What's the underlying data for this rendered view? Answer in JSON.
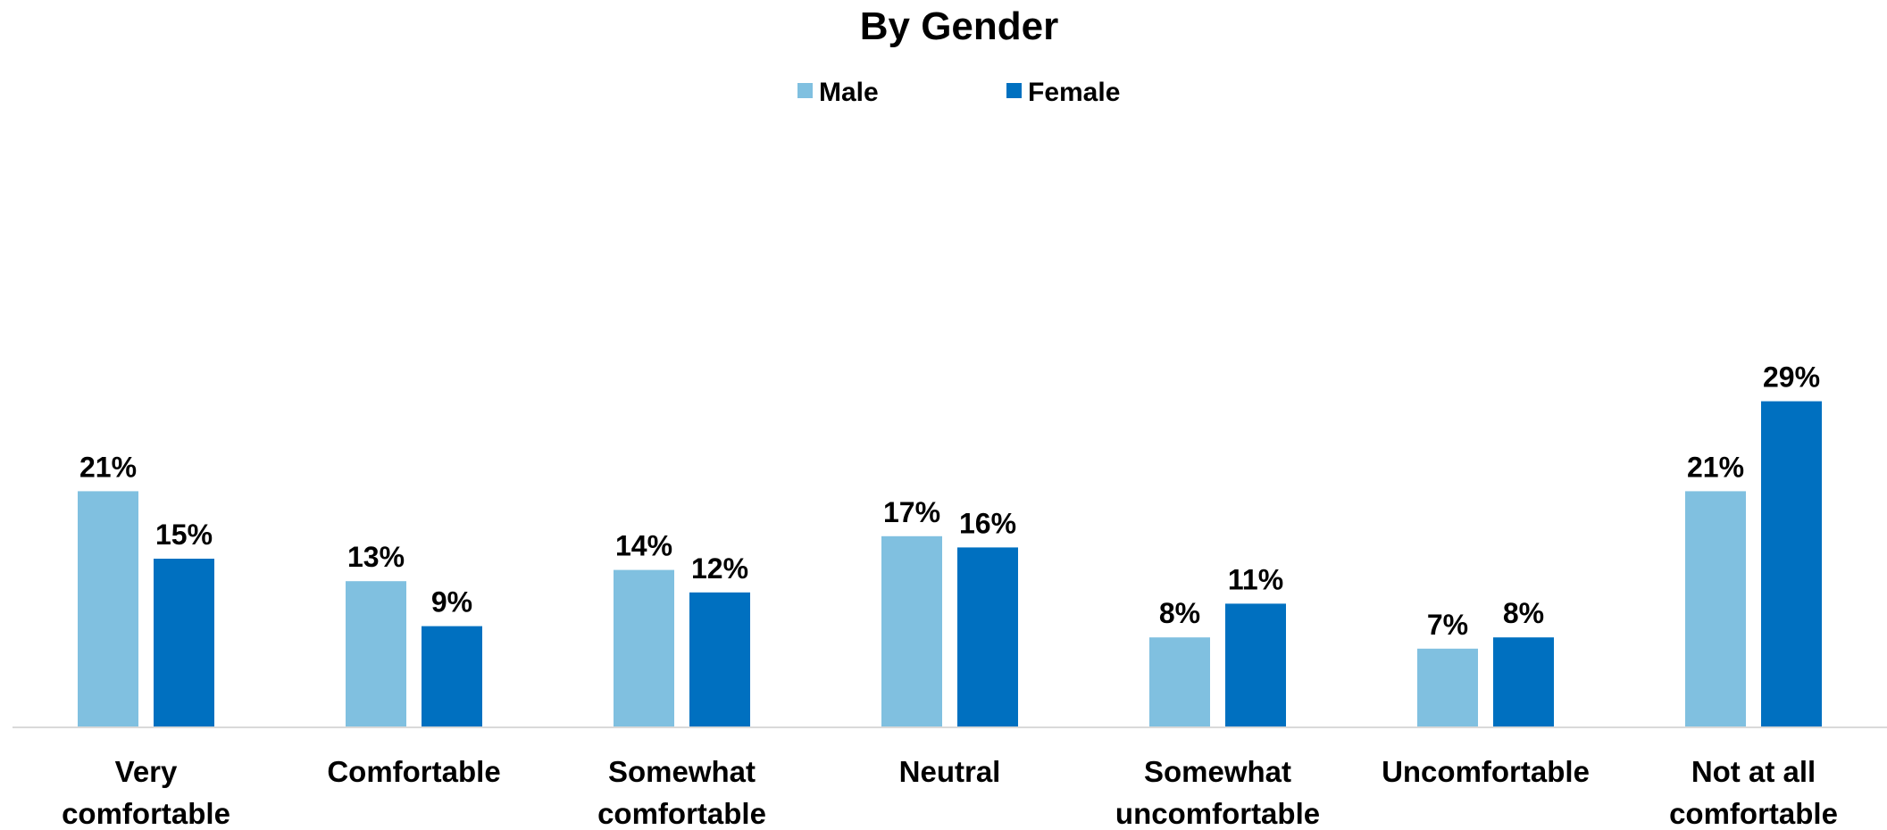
{
  "chart_data": {
    "type": "bar",
    "title": "By Gender",
    "categories": [
      [
        "Very",
        "comfortable"
      ],
      [
        "Comfortable"
      ],
      [
        "Somewhat",
        "comfortable"
      ],
      [
        "Neutral"
      ],
      [
        "Somewhat",
        "uncomfortable"
      ],
      [
        "Uncomfortable"
      ],
      [
        "Not at all",
        "comfortable"
      ]
    ],
    "series": [
      {
        "name": "Male",
        "color": "#80c0e0",
        "values": [
          21,
          13,
          14,
          17,
          8,
          7,
          21
        ]
      },
      {
        "name": "Female",
        "color": "#0070c0",
        "values": [
          15,
          9,
          12,
          16,
          11,
          8,
          29
        ]
      }
    ],
    "value_suffix": "%",
    "ylim": [
      0,
      30
    ],
    "grid": false,
    "legend_position": "top-center",
    "axis_color": "#d9d9d9"
  }
}
